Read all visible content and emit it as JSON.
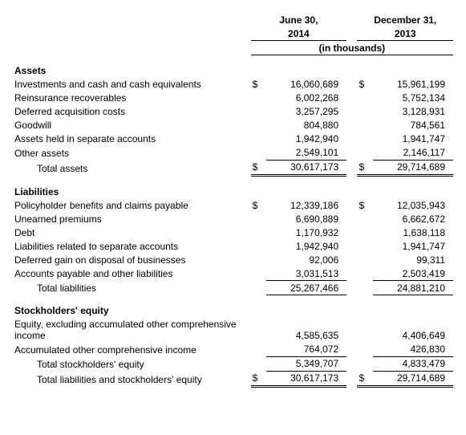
{
  "header": {
    "col1_line1": "June 30,",
    "col1_line2": "2014",
    "col2_line1": "December 31,",
    "col2_line2": "2013",
    "units": "(in thousands)"
  },
  "assets": {
    "title": "Assets",
    "rows": [
      {
        "label": "Investments and cash and cash equivalents",
        "c1": "$",
        "v1": "16,060,689",
        "c2": "$",
        "v2": "15,961,199"
      },
      {
        "label": "Reinsurance recoverables",
        "c1": "",
        "v1": "6,002,268",
        "c2": "",
        "v2": "5,752,134"
      },
      {
        "label": "Deferred acquisition costs",
        "c1": "",
        "v1": "3,257,295",
        "c2": "",
        "v2": "3,128,931"
      },
      {
        "label": "Goodwill",
        "c1": "",
        "v1": "804,880",
        "c2": "",
        "v2": "784,561"
      },
      {
        "label": "Assets held in separate accounts",
        "c1": "",
        "v1": "1,942,940",
        "c2": "",
        "v2": "1,941,747"
      },
      {
        "label": "Other assets",
        "c1": "",
        "v1": "2,549,101",
        "c2": "",
        "v2": "2,146,117"
      }
    ],
    "total": {
      "label": "Total assets",
      "c1": "$",
      "v1": "30,617,173",
      "c2": "$",
      "v2": "29,714,689"
    }
  },
  "liabilities": {
    "title": "Liabilities",
    "rows": [
      {
        "label": "Policyholder benefits and claims payable",
        "c1": "$",
        "v1": "12,339,186",
        "c2": "$",
        "v2": "12,035,943"
      },
      {
        "label": "Unearned premiums",
        "c1": "",
        "v1": "6,690,889",
        "c2": "",
        "v2": "6,662,672"
      },
      {
        "label": "Debt",
        "c1": "",
        "v1": "1,170,932",
        "c2": "",
        "v2": "1,638,118"
      },
      {
        "label": "Liabilities related to separate accounts",
        "c1": "",
        "v1": "1,942,940",
        "c2": "",
        "v2": "1,941,747"
      },
      {
        "label": "Deferred gain on disposal of businesses",
        "c1": "",
        "v1": "92,006",
        "c2": "",
        "v2": "99,311"
      },
      {
        "label": "Accounts payable and other liabilities",
        "c1": "",
        "v1": "3,031,513",
        "c2": "",
        "v2": "2,503,419"
      }
    ],
    "total": {
      "label": "Total liabilities",
      "c1": "",
      "v1": "25,267,466",
      "c2": "",
      "v2": "24,881,210"
    }
  },
  "equity": {
    "title": "Stockholders' equity",
    "rows": [
      {
        "label": "Equity, excluding accumulated other comprehensive income",
        "c1": "",
        "v1": "4,585,635",
        "c2": "",
        "v2": "4,406,649"
      },
      {
        "label": "Accumulated other comprehensive income",
        "c1": "",
        "v1": "764,072",
        "c2": "",
        "v2": "426,830"
      }
    ],
    "subtotal": {
      "label": "Total stockholders' equity",
      "c1": "",
      "v1": "5,349,707",
      "c2": "",
      "v2": "4,833,479"
    },
    "grandtotal": {
      "label": "Total liabilities and stockholders' equity",
      "c1": "$",
      "v1": "30,617,173",
      "c2": "$",
      "v2": "29,714,689"
    }
  }
}
